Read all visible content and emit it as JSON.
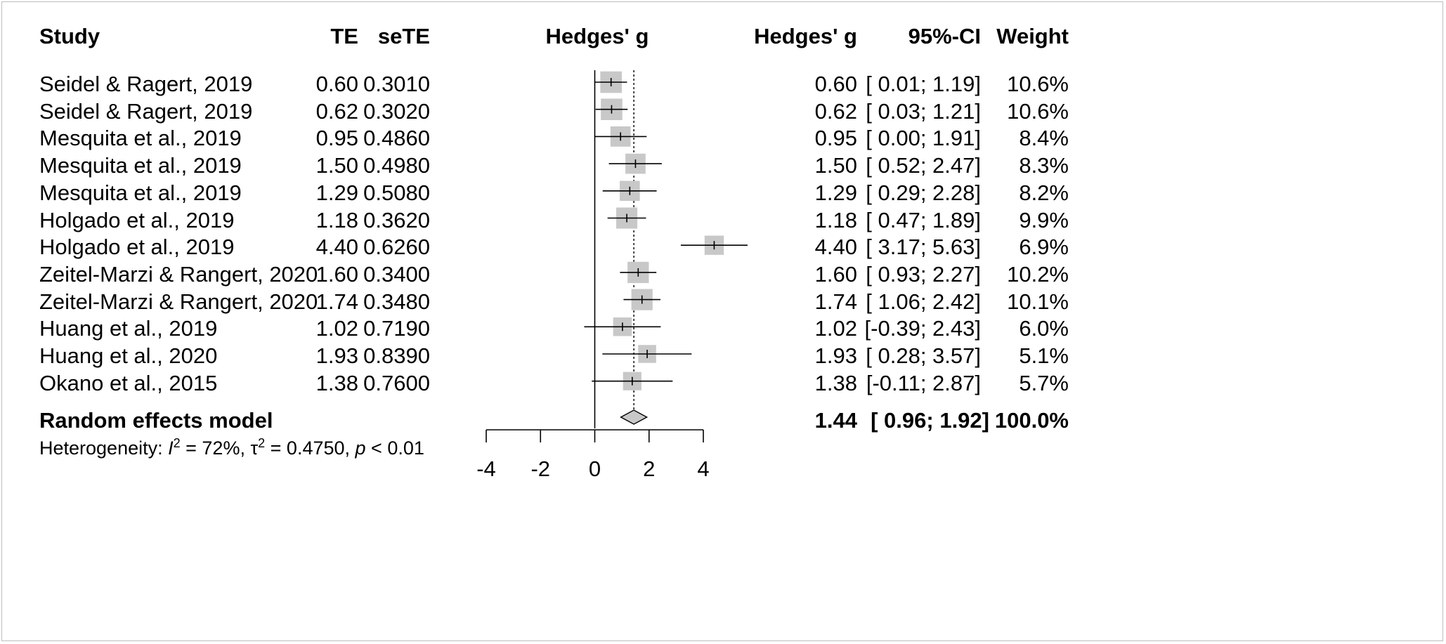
{
  "headers": {
    "study": "Study",
    "te": "TE",
    "sete": "seTE",
    "plot": "Hedges' g",
    "effect": "Hedges' g",
    "ci": "95%-CI",
    "weight": "Weight"
  },
  "studies": [
    {
      "name": "Seidel & Ragert, 2019",
      "te": "0.60",
      "sete": "0.3010",
      "g": "0.60",
      "ci": "[ 0.01; 1.19]",
      "weight": "10.6%"
    },
    {
      "name": "Seidel & Ragert, 2019",
      "te": "0.62",
      "sete": "0.3020",
      "g": "0.62",
      "ci": "[ 0.03; 1.21]",
      "weight": "10.6%"
    },
    {
      "name": "Mesquita et al., 2019",
      "te": "0.95",
      "sete": "0.4860",
      "g": "0.95",
      "ci": "[ 0.00; 1.91]",
      "weight": "8.4%"
    },
    {
      "name": "Mesquita et al., 2019",
      "te": "1.50",
      "sete": "0.4980",
      "g": "1.50",
      "ci": "[ 0.52; 2.47]",
      "weight": "8.3%"
    },
    {
      "name": "Mesquita et al., 2019",
      "te": "1.29",
      "sete": "0.5080",
      "g": "1.29",
      "ci": "[ 0.29; 2.28]",
      "weight": "8.2%"
    },
    {
      "name": "Holgado et al., 2019",
      "te": "1.18",
      "sete": "0.3620",
      "g": "1.18",
      "ci": "[ 0.47; 1.89]",
      "weight": "9.9%"
    },
    {
      "name": "Holgado et al., 2019",
      "te": "4.40",
      "sete": "0.6260",
      "g": "4.40",
      "ci": "[ 3.17; 5.63]",
      "weight": "6.9%"
    },
    {
      "name": "Zeitel-Marzi & Rangert, 2020",
      "te": "1.60",
      "sete": "0.3400",
      "g": "1.60",
      "ci": "[ 0.93; 2.27]",
      "weight": "10.2%"
    },
    {
      "name": "Zeitel-Marzi & Rangert, 2020",
      "te": "1.74",
      "sete": "0.3480",
      "g": "1.74",
      "ci": "[ 1.06; 2.42]",
      "weight": "10.1%"
    },
    {
      "name": "Huang et al., 2019",
      "te": "1.02",
      "sete": "0.7190",
      "g": "1.02",
      "ci": "[-0.39; 2.43]",
      "weight": "6.0%"
    },
    {
      "name": "Huang et al., 2020",
      "te": "1.93",
      "sete": "0.8390",
      "g": "1.93",
      "ci": "[ 0.28; 3.57]",
      "weight": "5.1%"
    },
    {
      "name": "Okano et al., 2015",
      "te": "1.38",
      "sete": "0.7600",
      "g": "1.38",
      "ci": "[-0.11; 2.87]",
      "weight": "5.7%"
    }
  ],
  "summary": {
    "label": "Random effects model",
    "g": "1.44",
    "ci": "[ 0.96; 1.92]",
    "weight": "100.0%"
  },
  "heterogeneity": {
    "prefix": "Heterogeneity: ",
    "i2_symbol": "I",
    "i2_value": " = 72%, ",
    "tau_symbol": "τ",
    "tau_value": " = 0.4750, ",
    "p_symbol": "p",
    "p_value": " < 0.01",
    "sup": "2"
  },
  "chart_data": {
    "type": "forest",
    "xlabel": "",
    "xlim": [
      -4,
      4
    ],
    "xticks": [
      "-4",
      "-2",
      "0",
      "2",
      "4"
    ],
    "null_line": 0,
    "summary_line": 1.44,
    "points": [
      {
        "est": 0.6,
        "lo": 0.01,
        "hi": 1.19,
        "w": 10.6
      },
      {
        "est": 0.62,
        "lo": 0.03,
        "hi": 1.21,
        "w": 10.6
      },
      {
        "est": 0.95,
        "lo": 0.0,
        "hi": 1.91,
        "w": 8.4
      },
      {
        "est": 1.5,
        "lo": 0.52,
        "hi": 2.47,
        "w": 8.3
      },
      {
        "est": 1.29,
        "lo": 0.29,
        "hi": 2.28,
        "w": 8.2
      },
      {
        "est": 1.18,
        "lo": 0.47,
        "hi": 1.89,
        "w": 9.9
      },
      {
        "est": 4.4,
        "lo": 3.17,
        "hi": 5.63,
        "w": 6.9
      },
      {
        "est": 1.6,
        "lo": 0.93,
        "hi": 2.27,
        "w": 10.2
      },
      {
        "est": 1.74,
        "lo": 1.06,
        "hi": 2.42,
        "w": 10.1
      },
      {
        "est": 1.02,
        "lo": -0.39,
        "hi": 2.43,
        "w": 6.0
      },
      {
        "est": 1.93,
        "lo": 0.28,
        "hi": 3.57,
        "w": 5.1
      },
      {
        "est": 1.38,
        "lo": -0.11,
        "hi": 2.87,
        "w": 5.7
      }
    ],
    "diamond": {
      "est": 1.44,
      "lo": 0.96,
      "hi": 1.92
    },
    "colors": {
      "square": "#c8c8c8",
      "diamond": "#c8c8c8",
      "line": "#000000"
    }
  }
}
